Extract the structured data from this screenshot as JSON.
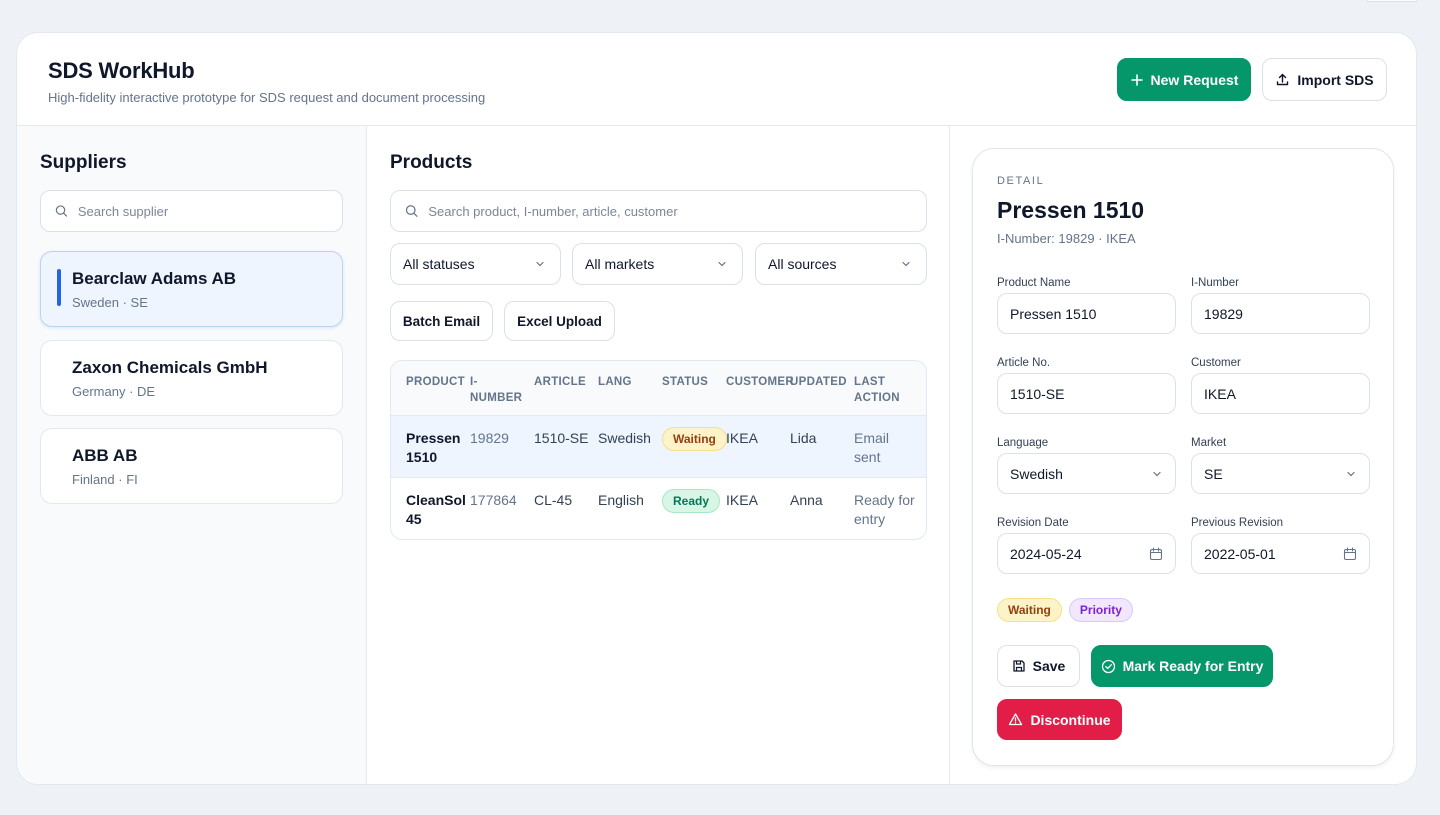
{
  "header": {
    "title": "SDS WorkHub",
    "subtitle": "High-fidelity interactive prototype for SDS request and document processing",
    "new_request_label": "New Request",
    "import_label": "Import SDS"
  },
  "suppliers": {
    "title": "Suppliers",
    "search_placeholder": "Search supplier",
    "items": [
      {
        "name": "Bearclaw Adams AB",
        "meta": "Sweden · SE",
        "active": true
      },
      {
        "name": "Zaxon Chemicals GmbH",
        "meta": "Germany · DE",
        "active": false
      },
      {
        "name": "ABB AB",
        "meta": "Finland · FI",
        "active": false
      }
    ]
  },
  "products": {
    "title": "Products",
    "search_placeholder": "Search product, I-number, article, customer",
    "filters": {
      "status": "All statuses",
      "market": "All markets",
      "source": "All sources"
    },
    "batch_email_label": "Batch Email",
    "excel_upload_label": "Excel Upload",
    "columns": [
      "PRODUCT",
      "I-\nNUMBER",
      "ARTICLE",
      "LANG",
      "STATUS",
      "CUSTOMER",
      "UPDATED",
      "LAST\nACTION"
    ],
    "rows": [
      {
        "product": "Pressen\n1510",
        "inumber": "19829",
        "article": "1510-SE",
        "lang": "Swedish",
        "status": "Waiting",
        "customer": "IKEA",
        "updated": "Lida",
        "last_action": "Email\nsent"
      },
      {
        "product": "CleanSol\n45",
        "inumber": "177864",
        "article": "CL-45",
        "lang": "English",
        "status": "Ready",
        "customer": "IKEA",
        "updated": "Anna",
        "last_action": "Ready for\nentry"
      }
    ]
  },
  "detail": {
    "eyebrow": "DETAIL",
    "title": "Pressen 1510",
    "subtitle": "I-Number: 19829 · IKEA",
    "fields": {
      "product_name_label": "Product Name",
      "product_name": "Pressen 1510",
      "inumber_label": "I-Number",
      "inumber": "19829",
      "article_label": "Article No.",
      "article": "1510-SE",
      "customer_label": "Customer",
      "customer": "IKEA",
      "language_label": "Language",
      "language": "Swedish",
      "market_label": "Market",
      "market": "SE",
      "revision_date_label": "Revision Date",
      "revision_date": "2024-05-24",
      "prev_revision_label": "Previous Revision",
      "prev_revision": "2022-05-01"
    },
    "badges": {
      "status": "Waiting",
      "priority": "Priority"
    },
    "save_label": "Save",
    "mark_ready_label": "Mark Ready for Entry",
    "discontinue_label": "Discontinue"
  },
  "colors": {
    "accent_green": "#059669",
    "accent_blue": "#2563eb",
    "danger": "#e11d48",
    "waiting_bg": "#fdf3c8",
    "ready_bg": "#d8f6e6",
    "priority_bg": "#f1e8ff"
  },
  "icons": [
    "plus-icon",
    "upload-icon",
    "search-icon",
    "chevron-down-icon",
    "calendar-icon",
    "save-icon",
    "check-circle-icon",
    "warning-icon"
  ]
}
